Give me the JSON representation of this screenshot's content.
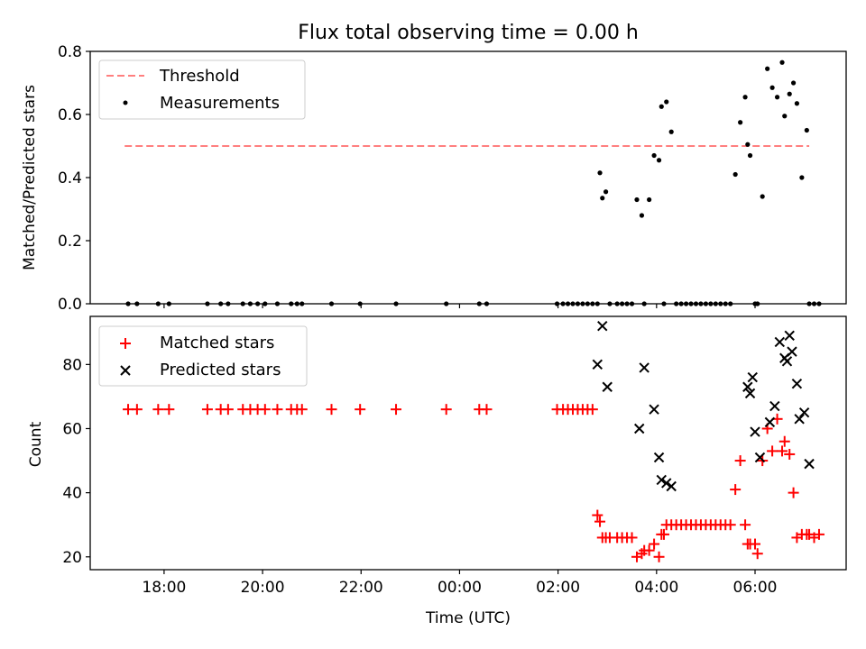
{
  "title": "Flux total observing time = 0.00 h",
  "colors": {
    "threshold": "#ff7f7f",
    "measurements": "#000000",
    "matched": "#ff0000",
    "predicted": "#000000"
  },
  "chart_data": [
    {
      "type": "scatter",
      "title": "Flux total observing time = 0.00 h",
      "xlabel": "",
      "ylabel": "Matched/Predicted stars",
      "xlim_hours": [
        16.5,
        31.85
      ],
      "ylim": [
        0,
        0.8
      ],
      "yticks": [
        "0.0",
        "0.2",
        "0.4",
        "0.6",
        "0.8"
      ],
      "xticks": [
        "18:00",
        "20:00",
        "22:00",
        "00:00",
        "02:00",
        "04:00",
        "06:00"
      ],
      "legend": {
        "placement": "top-left",
        "entries": [
          "Threshold",
          "Measurements"
        ]
      },
      "threshold": {
        "name": "Threshold",
        "y": 0.5,
        "x_start": 17.2,
        "x_end": 31.1
      },
      "series": [
        {
          "name": "Measurements",
          "x": [
            17.27,
            17.45,
            17.88,
            18.1,
            18.88,
            19.15,
            19.3,
            19.6,
            19.75,
            19.9,
            20.05,
            20.3,
            20.58,
            20.7,
            20.8,
            21.4,
            21.98,
            22.71,
            23.73,
            24.4,
            24.55,
            25.98,
            26.1,
            26.2,
            26.3,
            26.4,
            26.5,
            26.6,
            26.7,
            26.8,
            26.85,
            26.9,
            26.97,
            27.05,
            27.2,
            27.3,
            27.4,
            27.5,
            27.6,
            27.7,
            27.75,
            27.85,
            27.95,
            28.05,
            28.1,
            28.15,
            28.2,
            28.3,
            28.4,
            28.5,
            28.6,
            28.7,
            28.8,
            28.9,
            29.0,
            29.1,
            29.2,
            29.3,
            29.4,
            29.5,
            29.6,
            29.7,
            29.8,
            29.85,
            29.9,
            30.0,
            30.05,
            30.15,
            30.25,
            30.35,
            30.45,
            30.55,
            30.6,
            30.7,
            30.78,
            30.85,
            30.95,
            31.05,
            31.1,
            31.2,
            31.3
          ],
          "y": [
            0,
            0,
            0,
            0,
            0,
            0,
            0,
            0,
            0,
            0,
            0,
            0,
            0,
            0,
            0,
            0,
            0,
            0,
            0,
            0,
            0,
            0,
            0,
            0,
            0,
            0,
            0,
            0,
            0,
            0,
            0.415,
            0.335,
            0.355,
            0,
            0,
            0,
            0,
            0,
            0.33,
            0.28,
            0,
            0.33,
            0.47,
            0.455,
            0.625,
            0,
            0.64,
            0.545,
            0,
            0,
            0,
            0,
            0,
            0,
            0,
            0,
            0,
            0,
            0,
            0,
            0.41,
            0.575,
            0.655,
            0.505,
            0.47,
            0,
            0,
            0.34,
            0.745,
            0.685,
            0.655,
            0.765,
            0.595,
            0.665,
            0.7,
            0.635,
            0.4,
            0.55,
            0,
            0,
            0
          ]
        }
      ]
    },
    {
      "type": "scatter",
      "xlabel": "Time (UTC)",
      "ylabel": "Count",
      "xlim_hours": [
        16.5,
        31.85
      ],
      "ylim": [
        16,
        95
      ],
      "yticks": [
        "20",
        "40",
        "60",
        "80"
      ],
      "xticks": [
        "18:00",
        "20:00",
        "22:00",
        "00:00",
        "02:00",
        "04:00",
        "06:00"
      ],
      "legend": {
        "placement": "top-left",
        "entries": [
          "Matched stars",
          "Predicted stars"
        ]
      },
      "series": [
        {
          "name": "Matched stars",
          "x": [
            17.27,
            17.45,
            17.88,
            18.1,
            18.88,
            19.15,
            19.3,
            19.6,
            19.75,
            19.9,
            20.05,
            20.3,
            20.58,
            20.7,
            20.8,
            21.4,
            21.98,
            22.71,
            23.73,
            24.4,
            24.55,
            25.98,
            26.1,
            26.2,
            26.3,
            26.4,
            26.5,
            26.6,
            26.7,
            26.8,
            26.85,
            26.9,
            26.97,
            27.05,
            27.2,
            27.3,
            27.4,
            27.5,
            27.6,
            27.7,
            27.75,
            27.85,
            27.95,
            28.05,
            28.1,
            28.15,
            28.2,
            28.3,
            28.4,
            28.5,
            28.6,
            28.7,
            28.8,
            28.9,
            29.0,
            29.1,
            29.2,
            29.3,
            29.4,
            29.5,
            29.6,
            29.7,
            29.8,
            29.85,
            29.9,
            30.0,
            30.05,
            30.15,
            30.25,
            30.35,
            30.45,
            30.55,
            30.6,
            30.7,
            30.78,
            30.85,
            30.95,
            31.05,
            31.1,
            31.2,
            31.3
          ],
          "y": [
            66,
            66,
            66,
            66,
            66,
            66,
            66,
            66,
            66,
            66,
            66,
            66,
            66,
            66,
            66,
            66,
            66,
            66,
            66,
            66,
            66,
            66,
            66,
            66,
            66,
            66,
            66,
            66,
            66,
            33,
            31,
            26,
            26,
            26,
            26,
            26,
            26,
            26,
            20,
            21,
            22,
            22,
            24,
            20,
            27,
            27,
            30,
            30,
            30,
            30,
            30,
            30,
            30,
            30,
            30,
            30,
            30,
            30,
            30,
            30,
            41,
            50,
            30,
            24,
            24,
            24,
            21,
            50,
            60,
            53,
            63,
            53,
            56,
            52,
            40,
            26,
            27,
            27,
            27,
            26,
            27
          ]
        },
        {
          "name": "Predicted stars",
          "x": [
            26.8,
            26.9,
            27.0,
            27.65,
            27.75,
            27.95,
            28.05,
            28.1,
            28.2,
            28.3,
            29.85,
            29.9,
            29.95,
            30.0,
            30.1,
            30.3,
            30.4,
            30.5,
            30.6,
            30.65,
            30.7,
            30.75,
            30.85,
            30.9,
            31.0,
            31.1
          ],
          "y": [
            80,
            92,
            73,
            60,
            79,
            66,
            51,
            44,
            43,
            42,
            73,
            71,
            76,
            59,
            51,
            62,
            67,
            87,
            82,
            81,
            89,
            84,
            74,
            63,
            65,
            49
          ]
        }
      ]
    }
  ]
}
